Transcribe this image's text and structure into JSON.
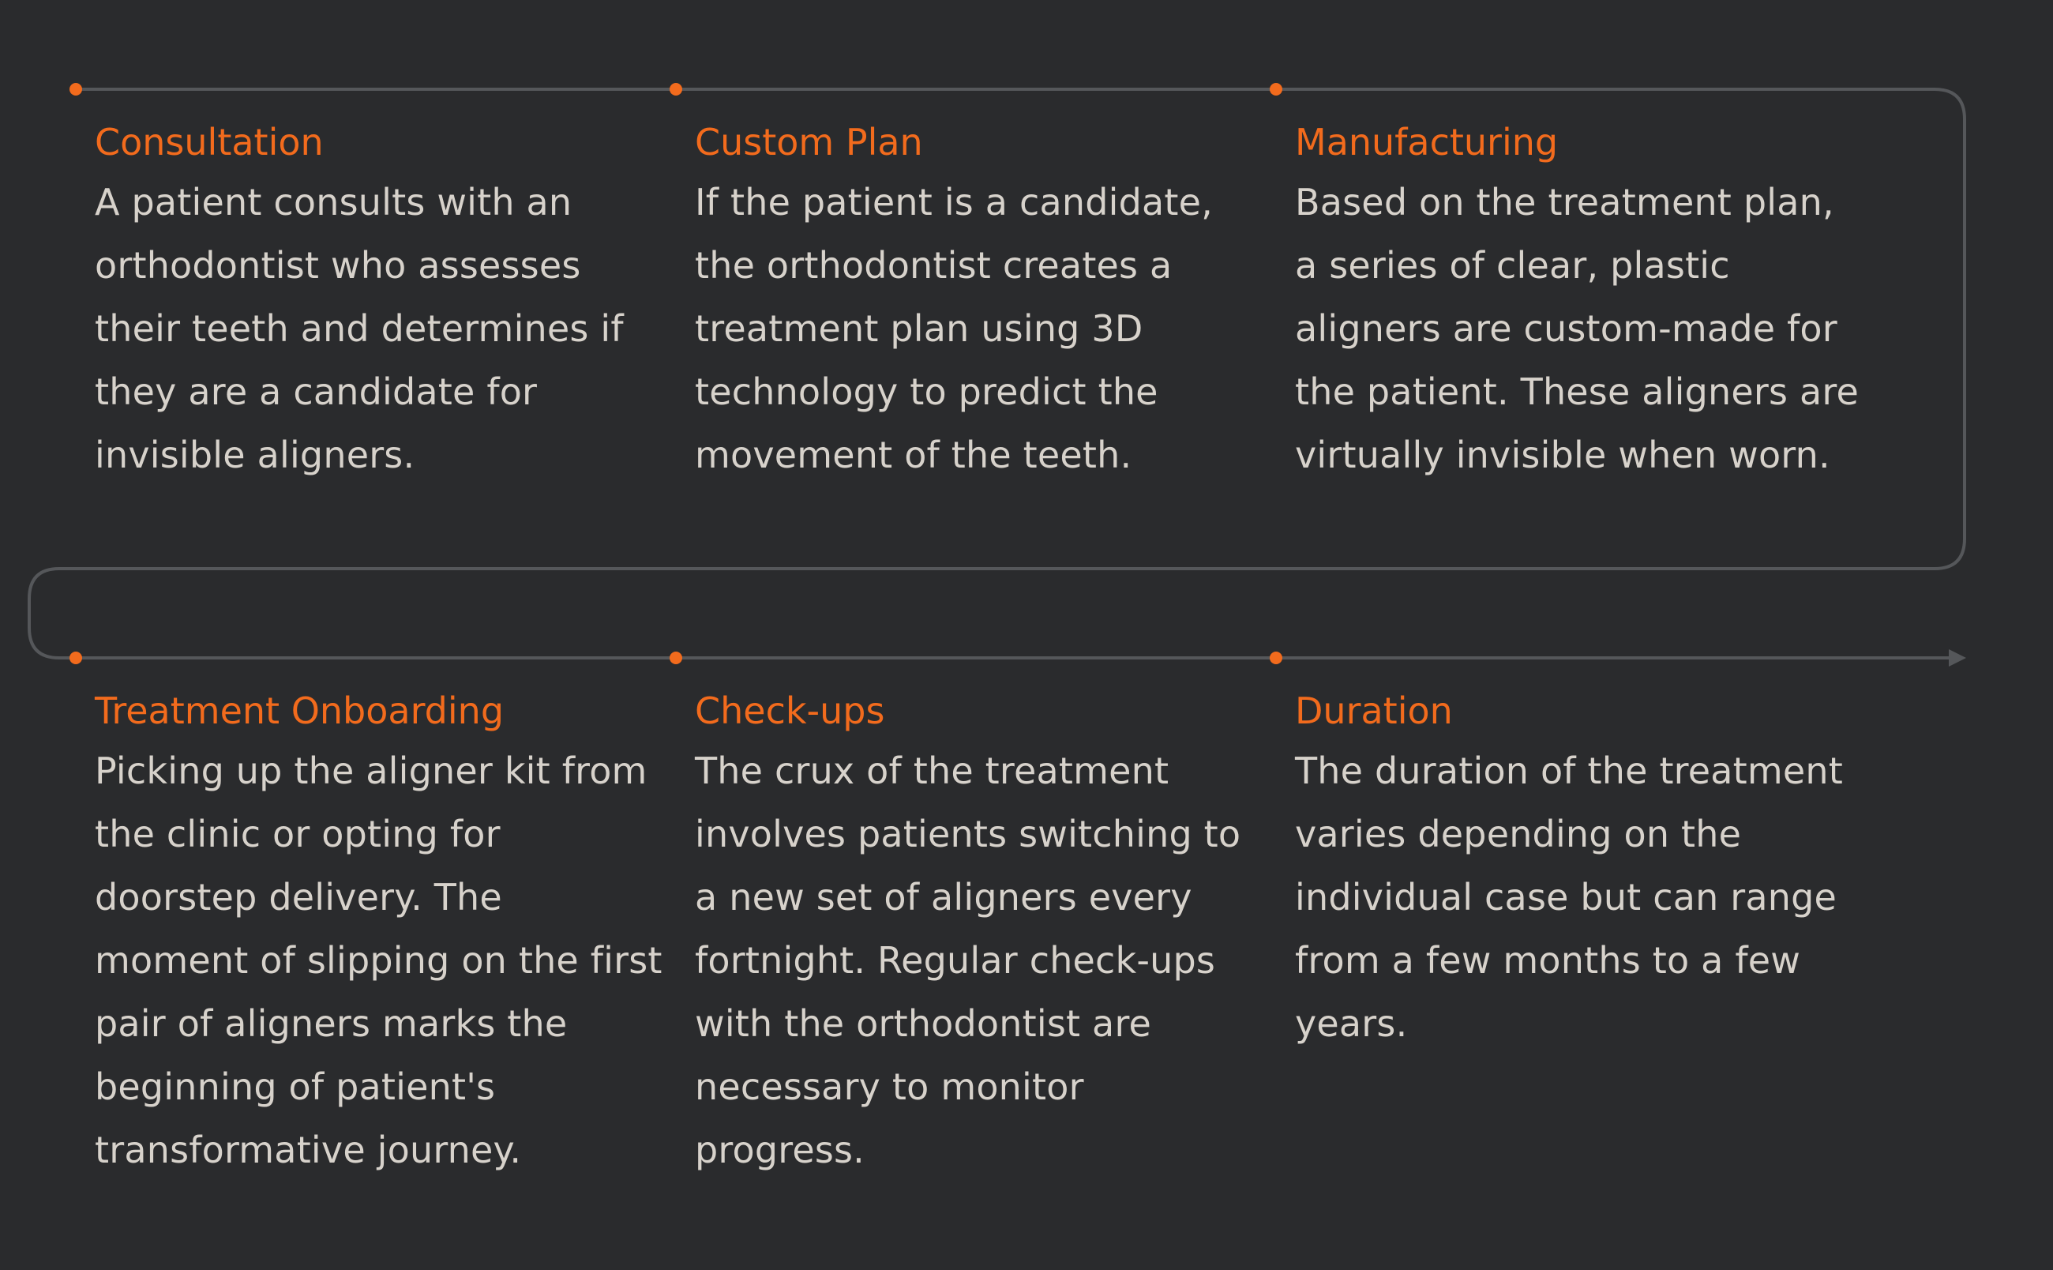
{
  "colors": {
    "background": "#2a2b2d",
    "accent": "#f26b1d",
    "text": "#d7d2cb",
    "connector": "#55575a"
  },
  "steps": [
    {
      "title": "Consultation",
      "text": "A patient consults with an orthodontist who assesses their teeth and determines if they are a candidate for invisible aligners."
    },
    {
      "title": "Custom Plan",
      "text": "If the patient is a candidate, the orthodontist creates a treatment plan using 3D technology to predict the movement of the teeth."
    },
    {
      "title": "Manufacturing",
      "text": "Based on the treatment plan, a series of clear, plastic aligners are custom-made for the patient. These aligners are virtually invisible when worn."
    },
    {
      "title": "Treatment Onboarding",
      "text": "Picking up the aligner kit from the clinic or opting for doorstep delivery. The moment of slipping on the first pair of aligners marks the beginning of patient's transformative journey."
    },
    {
      "title": "Check-ups",
      "text": "The crux of the treatment involves patients switching to a new set of aligners every fortnight. Regular check-ups with the orthodontist are necessary to monitor progress."
    },
    {
      "title": "Duration",
      "text": "The duration of the treatment varies depending on the individual case but can range from a few months to a few years."
    }
  ]
}
